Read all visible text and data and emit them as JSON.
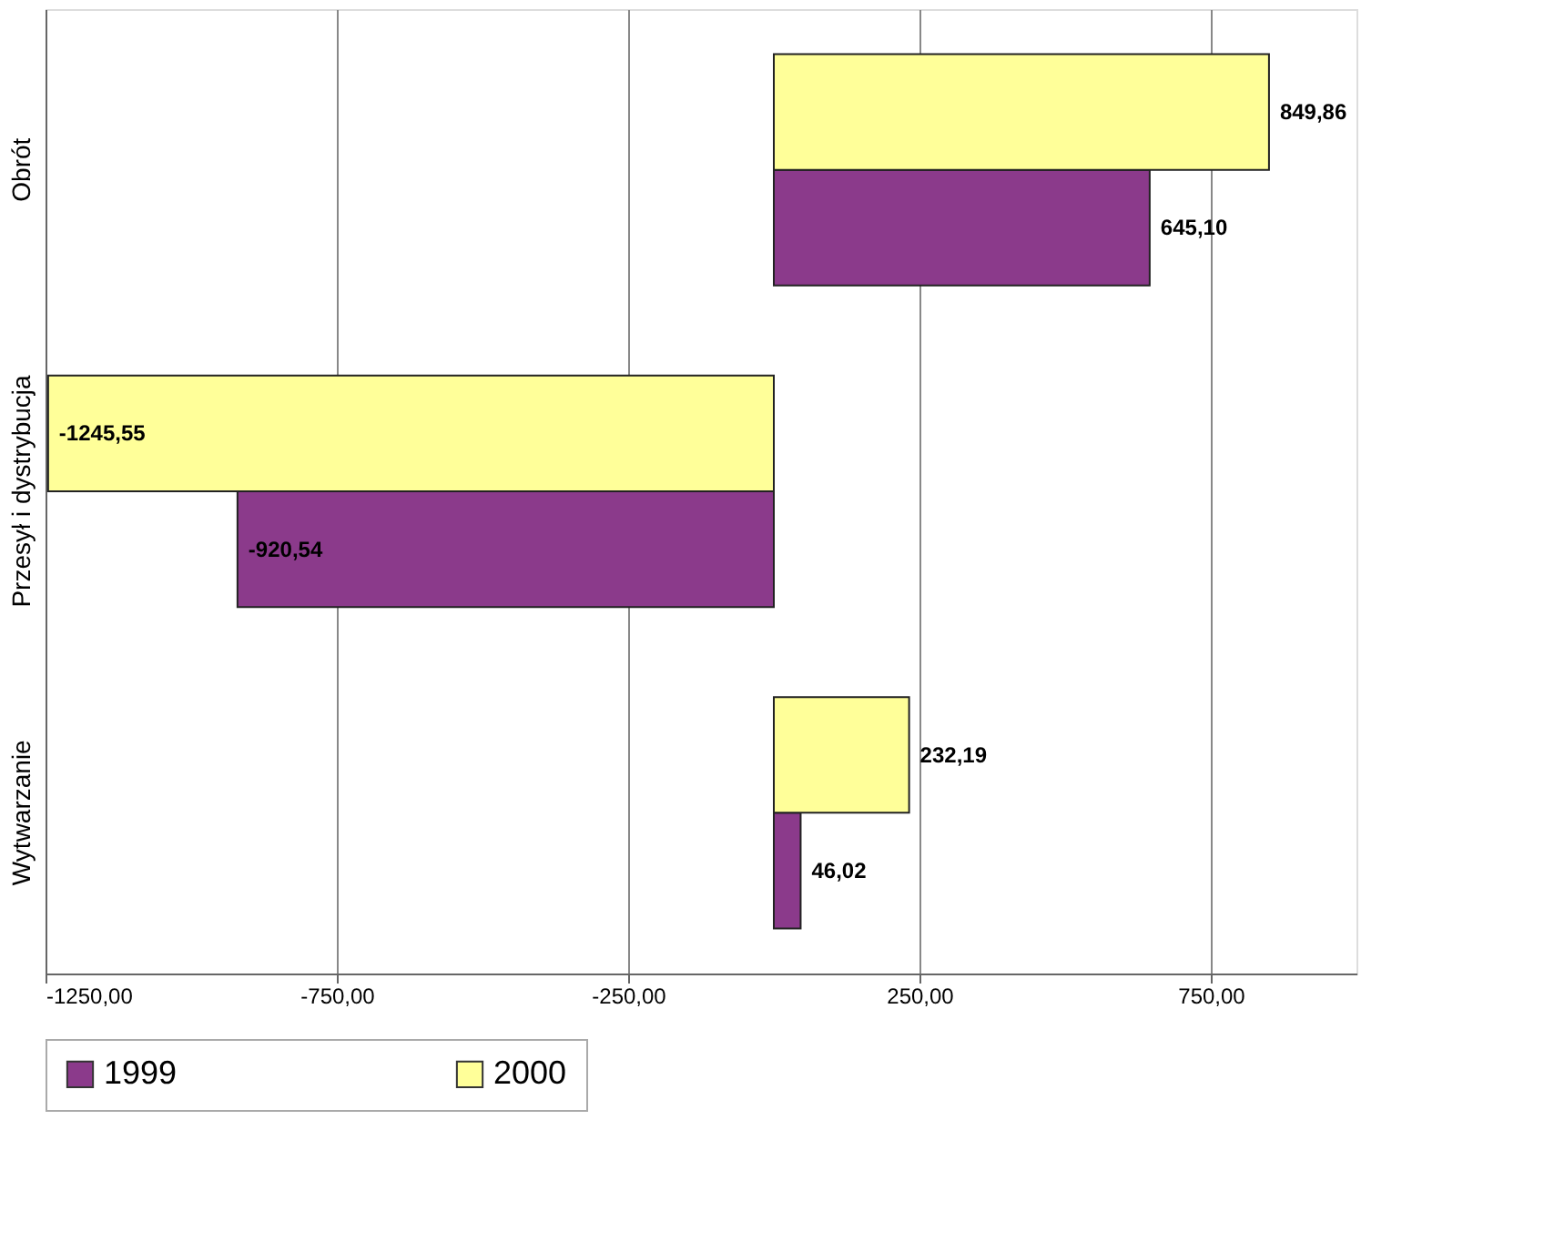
{
  "chart_data": {
    "type": "bar",
    "orientation": "horizontal",
    "categories": [
      "Obrót",
      "Przesył i dystrybucja",
      "Wytwarzanie"
    ],
    "series": [
      {
        "name": "1999",
        "color": "#8b3a8b",
        "values": [
          645.1,
          -920.54,
          46.02
        ],
        "value_labels": [
          "645,10",
          "-920,54",
          "46,02"
        ]
      },
      {
        "name": "2000",
        "color": "#ffff99",
        "values": [
          849.86,
          -1245.55,
          232.19
        ],
        "value_labels": [
          "849,86",
          "-1245,55",
          "232,19"
        ]
      }
    ],
    "xlim": [
      -1250,
      1000
    ],
    "xticks": [
      {
        "value": -1250,
        "label": "-1250,00"
      },
      {
        "value": -750,
        "label": "-750,00"
      },
      {
        "value": -250,
        "label": "-250,00"
      },
      {
        "value": 250,
        "label": "250,00"
      },
      {
        "value": 750,
        "label": "750,00"
      }
    ],
    "grid": "x",
    "legend": "bottom"
  }
}
